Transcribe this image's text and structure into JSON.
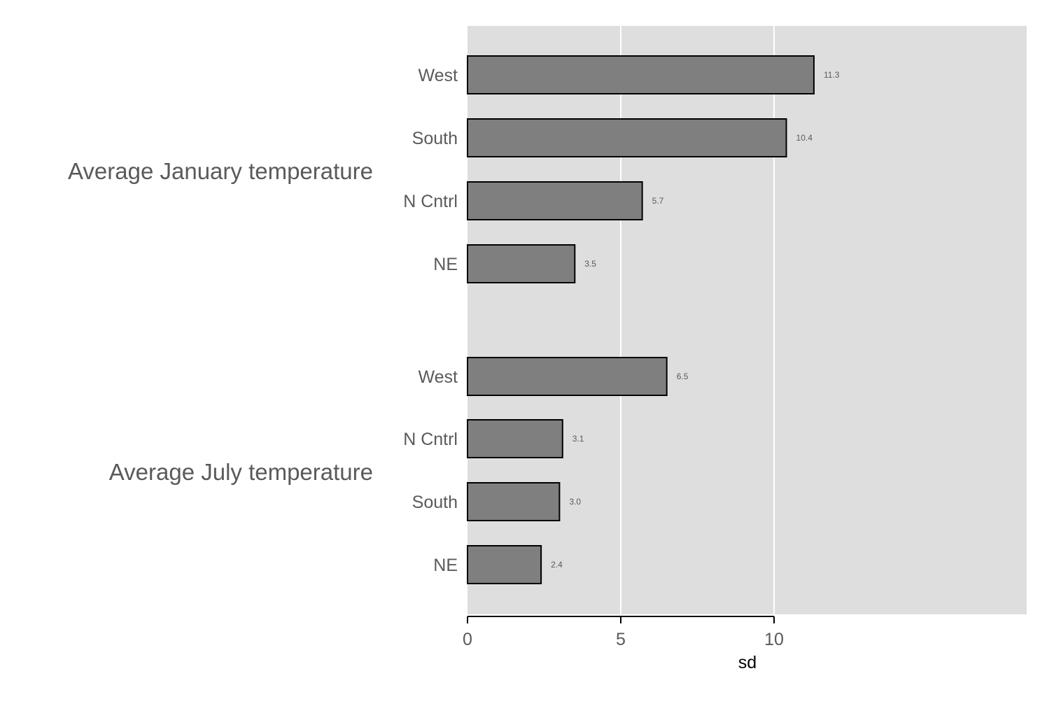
{
  "chart_data": {
    "type": "bar",
    "orientation": "horizontal",
    "xlabel": "sd",
    "xlim": [
      0,
      18.2
    ],
    "xticks": [
      0,
      5,
      10
    ],
    "grid": "vertical major gridlines",
    "value_labels": true,
    "colors": {
      "panel_background": "#dedede",
      "gridline": "#ffffff",
      "bar_fill": "#7f7f7f",
      "bar_stroke": "#000000",
      "text": "#5a5a5a",
      "axis_title": "#000000"
    },
    "groups": [
      {
        "name": "Average January temperature",
        "categories": [
          "West",
          "South",
          "N Cntrl",
          "NE"
        ],
        "values": [
          11.3,
          10.4,
          5.7,
          3.5
        ],
        "labels": [
          "11.3",
          "10.4",
          "5.7",
          "3.5"
        ]
      },
      {
        "name": "Average July temperature",
        "categories": [
          "West",
          "N Cntrl",
          "South",
          "NE"
        ],
        "values": [
          6.5,
          3.1,
          3.0,
          2.4
        ],
        "labels": [
          "6.5",
          "3.1",
          "3.0",
          "2.4"
        ]
      }
    ]
  }
}
